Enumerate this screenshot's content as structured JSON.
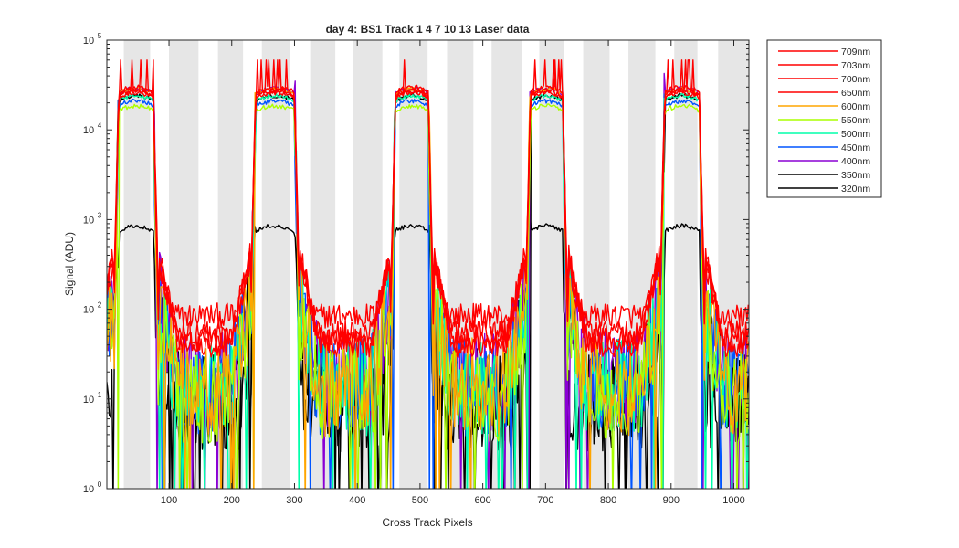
{
  "chart_data": {
    "type": "line",
    "title": "day 4: BS1  Track 1   4   7  10  13 Laser data",
    "xlabel": "Cross Track Pixels",
    "ylabel": "Signal (ADU)",
    "xlim": [
      1,
      1024
    ],
    "ylim": [
      1,
      100000
    ],
    "yscale": "log",
    "grid": false,
    "legend_position": "outside-top-right",
    "x_ticks": [
      100,
      200,
      300,
      400,
      500,
      600,
      700,
      800,
      900,
      1000
    ],
    "y_ticks": [
      {
        "value": 1,
        "base": "10",
        "exp": "0"
      },
      {
        "value": 10,
        "base": "10",
        "exp": "1"
      },
      {
        "value": 100,
        "base": "10",
        "exp": "2"
      },
      {
        "value": 1000,
        "base": "10",
        "exp": "3"
      },
      {
        "value": 10000,
        "base": "10",
        "exp": "4"
      },
      {
        "value": 100000,
        "base": "10",
        "exp": "5"
      }
    ],
    "shaded_bands": [
      [
        28,
        70
      ],
      [
        100,
        147
      ],
      [
        178,
        218
      ],
      [
        248,
        293
      ],
      [
        325,
        365
      ],
      [
        393,
        440
      ],
      [
        467,
        512
      ],
      [
        543,
        585
      ],
      [
        614,
        662
      ],
      [
        690,
        730
      ],
      [
        760,
        802
      ],
      [
        832,
        875
      ],
      [
        905,
        942
      ],
      [
        975,
        1024
      ]
    ],
    "track_peaks": [
      {
        "track": 1,
        "center": 45,
        "plateau": [
          20,
          75
        ]
      },
      {
        "track": 4,
        "center": 265,
        "plateau": [
          238,
          300
        ]
      },
      {
        "track": 7,
        "center": 482,
        "plateau": [
          461,
          513
        ]
      },
      {
        "track": 10,
        "center": 692,
        "plateau": [
          676,
          727
        ]
      },
      {
        "track": 13,
        "center": 908,
        "plateau": [
          890,
          945
        ]
      }
    ],
    "series": [
      {
        "name": "709nm",
        "color": "#ff0000",
        "peak": 30000,
        "out_of_band": 85,
        "saturates": true
      },
      {
        "name": "703nm",
        "color": "#ff0000",
        "peak": 28000,
        "out_of_band": 55,
        "saturates": true
      },
      {
        "name": "700nm",
        "color": "#ff0000",
        "peak": 27000,
        "out_of_band": 45,
        "saturates": false
      },
      {
        "name": "650nm",
        "color": "#ff0000",
        "peak": 26000,
        "out_of_band": 40,
        "saturates": false
      },
      {
        "name": "600nm",
        "color": "#ffa500",
        "peak": 28500,
        "out_of_band": 12,
        "saturates": false
      },
      {
        "name": "550nm",
        "color": "#aaff00",
        "peak": 18500,
        "out_of_band": 10,
        "saturates": false
      },
      {
        "name": "500nm",
        "color": "#00ffaa",
        "peak": 24000,
        "out_of_band": 12,
        "saturates": false
      },
      {
        "name": "450nm",
        "color": "#0055ff",
        "peak": 21000,
        "out_of_band": 12,
        "saturates": false
      },
      {
        "name": "400nm",
        "color": "#8a00d4",
        "peak": 29000,
        "out_of_band": 14,
        "saturates": false
      },
      {
        "name": "350nm",
        "color": "#000000",
        "peak": 24000,
        "out_of_band": 9,
        "saturates": false
      },
      {
        "name": "320nm",
        "color": "#000000",
        "peak": 850,
        "out_of_band": 8,
        "saturates": false
      }
    ]
  }
}
